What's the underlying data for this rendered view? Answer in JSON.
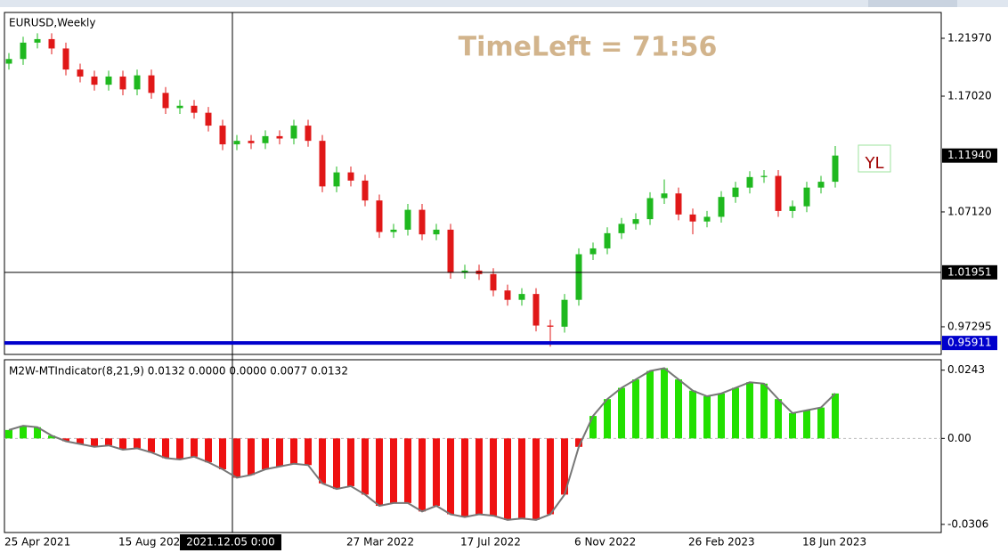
{
  "chart_data": [
    {
      "type": "candlestick",
      "title": "EURUSD,Weekly",
      "annotation": "TimeLeft = 71:56",
      "overlay_text": "YL",
      "x": [
        "25 Apr 2021",
        null,
        null,
        null,
        null,
        null,
        null,
        null,
        "15 Aug 2021",
        null,
        null,
        null,
        null,
        null,
        null,
        null,
        null,
        null,
        null,
        null,
        null,
        null,
        null,
        null,
        "27 Mar 2022",
        null,
        null,
        null,
        null,
        null,
        null,
        null,
        "17 Jul 2022",
        null,
        null,
        null,
        null,
        null,
        null,
        null,
        "6 Nov 2022",
        null,
        null,
        null,
        null,
        null,
        null,
        null,
        "26 Feb 2023",
        null,
        null,
        null,
        null,
        null,
        null,
        null,
        "18 Jun 2023",
        null,
        null
      ],
      "open": [
        1.198,
        1.202,
        1.216,
        1.219,
        1.211,
        1.193,
        1.187,
        1.18,
        1.187,
        1.176,
        1.188,
        1.173,
        1.16,
        1.162,
        1.156,
        1.145,
        1.129,
        1.132,
        1.13,
        1.136,
        1.134,
        1.145,
        1.132,
        1.093,
        1.105,
        1.098,
        1.081,
        1.054,
        1.056,
        1.073,
        1.052,
        1.056,
        1.019,
        1.021,
        1.018,
        1.004,
        0.996,
        1.001,
        0.974,
        0.973,
        0.996,
        1.035,
        1.04,
        1.053,
        1.061,
        1.065,
        1.083,
        1.087,
        1.069,
        1.063,
        1.067,
        1.084,
        1.092,
        1.101,
        1.102,
        1.072,
        1.076,
        1.092,
        1.097
      ],
      "high": [
        1.207,
        1.221,
        1.224,
        1.224,
        1.216,
        1.198,
        1.192,
        1.192,
        1.192,
        1.193,
        1.193,
        1.178,
        1.167,
        1.167,
        1.161,
        1.15,
        1.137,
        1.137,
        1.141,
        1.141,
        1.15,
        1.15,
        1.137,
        1.11,
        1.11,
        1.103,
        1.086,
        1.061,
        1.078,
        1.078,
        1.061,
        1.061,
        1.026,
        1.026,
        1.023,
        1.009,
        1.006,
        1.006,
        0.979,
        1.001,
        1.04,
        1.045,
        1.058,
        1.066,
        1.07,
        1.088,
        1.099,
        1.092,
        1.074,
        1.072,
        1.089,
        1.097,
        1.106,
        1.107,
        1.107,
        1.081,
        1.097,
        1.102,
        1.1275
      ],
      "low": [
        1.193,
        1.197,
        1.211,
        1.206,
        1.188,
        1.182,
        1.175,
        1.175,
        1.171,
        1.171,
        1.168,
        1.155,
        1.155,
        1.151,
        1.14,
        1.124,
        1.124,
        1.125,
        1.125,
        1.129,
        1.129,
        1.127,
        1.088,
        1.088,
        1.093,
        1.076,
        1.049,
        1.049,
        1.051,
        1.047,
        1.047,
        1.014,
        1.014,
        1.013,
        0.999,
        0.991,
        0.991,
        0.969,
        0.956,
        0.968,
        0.991,
        1.03,
        1.035,
        1.048,
        1.056,
        1.06,
        1.078,
        1.064,
        1.052,
        1.058,
        1.062,
        1.079,
        1.087,
        1.096,
        1.067,
        1.066,
        1.071,
        1.087,
        1.092
      ],
      "close": [
        1.202,
        1.216,
        1.219,
        1.211,
        1.193,
        1.187,
        1.18,
        1.187,
        1.176,
        1.188,
        1.173,
        1.16,
        1.162,
        1.156,
        1.145,
        1.129,
        1.132,
        1.13,
        1.136,
        1.134,
        1.145,
        1.132,
        1.093,
        1.105,
        1.098,
        1.081,
        1.054,
        1.056,
        1.073,
        1.052,
        1.056,
        1.019,
        1.021,
        1.018,
        1.004,
        0.996,
        1.001,
        0.974,
        0.973,
        0.996,
        1.035,
        1.04,
        1.053,
        1.061,
        1.065,
        1.083,
        1.087,
        1.069,
        1.063,
        1.067,
        1.084,
        1.092,
        1.101,
        1.102,
        1.072,
        1.076,
        1.092,
        1.097,
        1.1194
      ],
      "up_color": "#1fb81f",
      "down_color": "#e01818",
      "ylim": [
        0.9493,
        1.2418
      ],
      "yticks": [
        {
          "value": 1.2197,
          "label": "1.21970"
        },
        {
          "value": 1.1702,
          "label": "1.17020"
        },
        {
          "value": 1.0712,
          "label": "1.07120"
        },
        0.97295
      ],
      "current_price": {
        "value": 1.1194,
        "label": "1.11940"
      },
      "crosshair": {
        "value": 1.01951,
        "label": "1.01951",
        "date": "2021.12.05 0:00"
      },
      "level_line": {
        "value": 0.95911,
        "label": "0.95911",
        "color": "#0000cc"
      }
    },
    {
      "type": "bar",
      "title": "M2W-MTIndicator(8,21,9) 0.0132 0.0000 0.0000 0.0077 0.0132",
      "values": [
        0.003,
        0.0045,
        0.004,
        0.001,
        -0.001,
        -0.002,
        -0.003,
        -0.0025,
        -0.004,
        -0.0035,
        -0.005,
        -0.007,
        -0.0075,
        -0.0065,
        -0.0085,
        -0.011,
        -0.014,
        -0.013,
        -0.011,
        -0.01,
        -0.009,
        -0.0095,
        -0.016,
        -0.018,
        -0.017,
        -0.02,
        -0.024,
        -0.023,
        -0.023,
        -0.026,
        -0.024,
        -0.027,
        -0.028,
        -0.027,
        -0.0275,
        -0.029,
        -0.0285,
        -0.029,
        -0.027,
        -0.02,
        -0.003,
        0.008,
        0.014,
        0.018,
        0.021,
        0.024,
        0.025,
        0.021,
        0.017,
        0.015,
        0.016,
        0.018,
        0.02,
        0.0195,
        0.014,
        0.009,
        0.01,
        0.011,
        0.016
      ],
      "positive_color": "#22e000",
      "negative_color": "#ee1111",
      "ylim": [
        -0.0335,
        0.028
      ],
      "yticks": [
        0.0243,
        {
          "value": 0,
          "label": "0.00"
        },
        -0.0306
      ]
    }
  ]
}
